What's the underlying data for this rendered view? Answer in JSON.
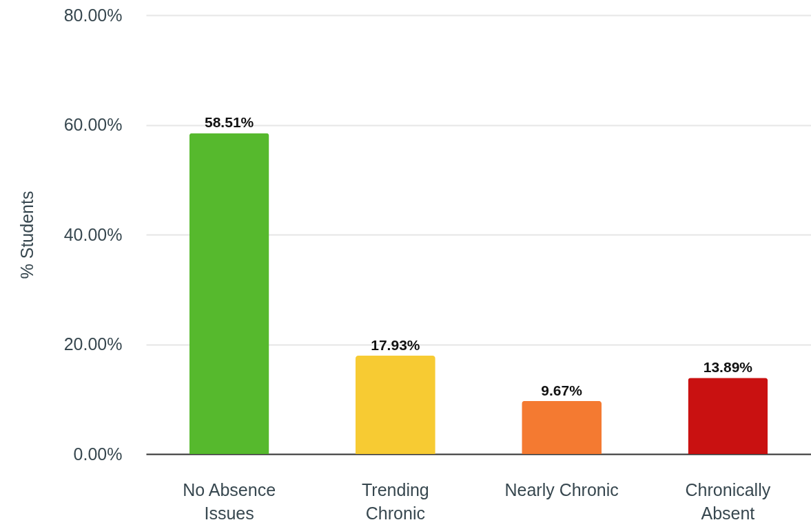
{
  "chart_data": {
    "type": "bar",
    "ylabel": "% Students",
    "categories": [
      "No Absence Issues",
      "Trending Chronic",
      "Nearly Chronic",
      "Chronically Absent"
    ],
    "values": [
      58.51,
      17.93,
      9.67,
      13.89
    ],
    "colors": [
      "#56b92d",
      "#f7cb33",
      "#f47a31",
      "#c91111"
    ],
    "value_labels": [
      "58.51%",
      "17.93%",
      "9.67%",
      "13.89%"
    ],
    "ylim": [
      0,
      80
    ],
    "yticks": [
      {
        "value": 0,
        "label": "0.00%"
      },
      {
        "value": 20,
        "label": "20.00%"
      },
      {
        "value": 40,
        "label": "40.00%"
      },
      {
        "value": 60,
        "label": "60.00%"
      },
      {
        "value": 80,
        "label": "80.00%"
      }
    ],
    "grid": "y",
    "legend": false
  }
}
